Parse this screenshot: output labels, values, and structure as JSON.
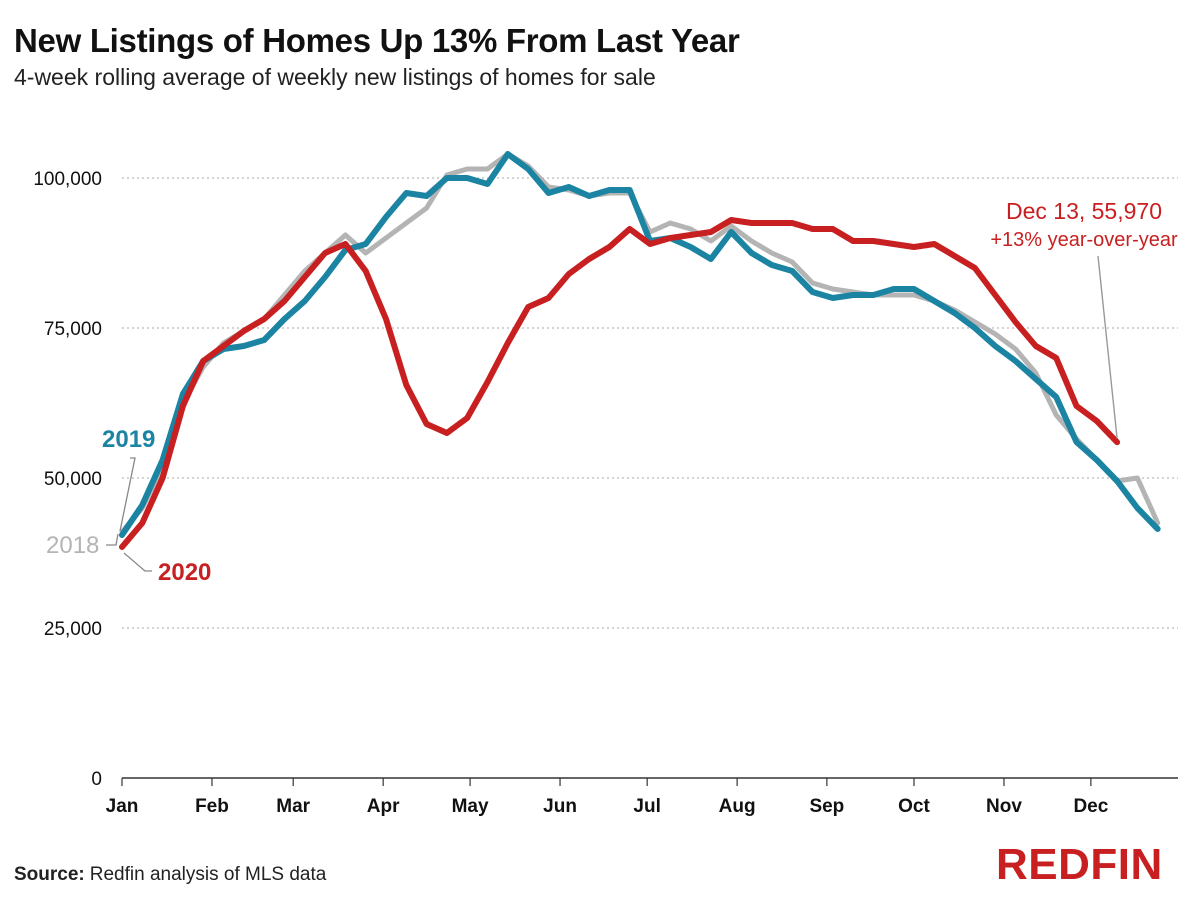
{
  "title": "New Listings of Homes Up 13% From Last Year",
  "subtitle": "4-week rolling average of weekly new listings of homes for sale",
  "source_label": "Source:",
  "source_text": "Redfin analysis of MLS data",
  "logo_text": "REDFIN",
  "colors": {
    "2018": "#b4b4b4",
    "2019": "#1b84a3",
    "2020": "#c82021",
    "grid": "#bbbbbb",
    "axis": "#333333"
  },
  "chart_data": {
    "type": "line",
    "title": "New Listings of Homes Up 13% From Last Year",
    "xlabel": "",
    "ylabel": "",
    "months": [
      "Jan",
      "Feb",
      "Mar",
      "Apr",
      "May",
      "Jun",
      "Jul",
      "Aug",
      "Sep",
      "Oct",
      "Nov",
      "Dec"
    ],
    "yticks": [
      0,
      25000,
      50000,
      75000,
      100000
    ],
    "ytick_labels": [
      "0",
      "25,000",
      "50,000",
      "75,000",
      "100,000"
    ],
    "ylim": [
      0,
      110000
    ],
    "x_unit": "week of year",
    "xlim": [
      0,
      52
    ],
    "grid": true,
    "series": [
      {
        "name": "2018",
        "values": [
          41000,
          45000,
          52000,
          62500,
          68500,
          72500,
          74500,
          76500,
          80500,
          84500,
          87500,
          90500,
          87500,
          90000,
          92500,
          95000,
          100500,
          101500,
          101500,
          104000,
          102000,
          98500,
          98000,
          97000,
          97500,
          97500,
          91000,
          92500,
          91500,
          89500,
          92000,
          89500,
          87500,
          86000,
          82500,
          81500,
          81000,
          80500,
          80500,
          80500,
          79500,
          78000,
          76000,
          74000,
          71500,
          67500,
          60500,
          56500,
          53000,
          49500,
          50000,
          42500
        ]
      },
      {
        "name": "2019",
        "values": [
          40500,
          45500,
          53000,
          64000,
          69500,
          71500,
          72000,
          73000,
          76500,
          79500,
          83500,
          88000,
          89000,
          93500,
          97500,
          97000,
          100000,
          100000,
          99000,
          104000,
          101500,
          97500,
          98500,
          97000,
          98000,
          98000,
          89500,
          90000,
          88500,
          86500,
          91000,
          87500,
          85500,
          84500,
          81000,
          80000,
          80500,
          80500,
          81500,
          81500,
          79500,
          77500,
          75000,
          72000,
          69500,
          66500,
          63500,
          56000,
          53000,
          49500,
          45000,
          41500
        ]
      },
      {
        "name": "2020",
        "values": [
          38500,
          42500,
          50000,
          62000,
          69500,
          72000,
          74500,
          76500,
          79500,
          83500,
          87500,
          89000,
          84500,
          76500,
          65500,
          59000,
          57500,
          60000,
          66000,
          72500,
          78500,
          80000,
          84000,
          86500,
          88500,
          91500,
          89000,
          90000,
          90500,
          91000,
          93000,
          92500,
          92500,
          92500,
          91500,
          91500,
          89500,
          89500,
          89000,
          88500,
          89000,
          87000,
          85000,
          80500,
          76000,
          72000,
          70000,
          62000,
          59500,
          55970
        ]
      }
    ],
    "series_labels": {
      "2018": "2018",
      "2019": "2019",
      "2020": "2020"
    },
    "annotation": {
      "line1": "Dec 13, 55,970",
      "line2": "+13% year-over-year",
      "point_week": 49,
      "point_value": 55970
    }
  }
}
